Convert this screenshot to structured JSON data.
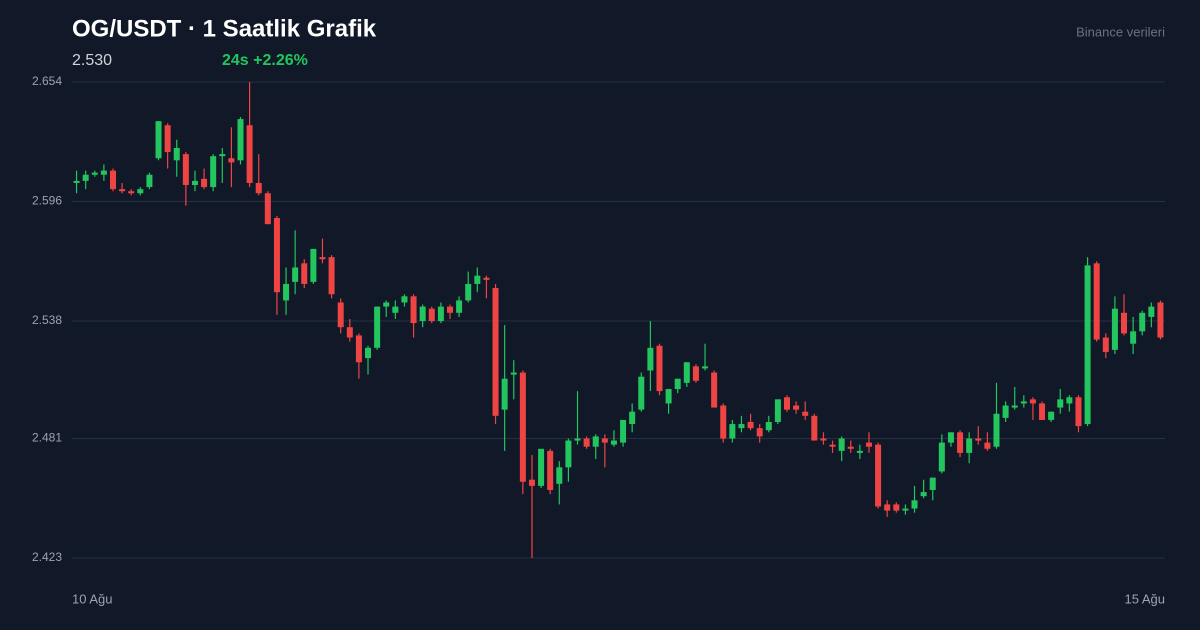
{
  "chart_data": {
    "type": "candlestick",
    "title": "OG/USDT · 1 Saatlik Grafik",
    "price": "2.530",
    "change": "24s +2.26%",
    "source": "Binance verileri",
    "x_labels": [
      "10 Ağu",
      "15 Ağu"
    ],
    "ylim": [
      2.423,
      2.654
    ],
    "yticks": [
      2.654,
      2.596,
      2.538,
      2.481,
      2.423
    ],
    "grid": true,
    "up_color": "#22c55e",
    "down_color": "#ef4444",
    "open": [
      2.605,
      2.606,
      2.609,
      2.609,
      2.611,
      2.602,
      2.601,
      2.6,
      2.603,
      2.617,
      2.633,
      2.616,
      2.619,
      2.604,
      2.607,
      2.603,
      2.618,
      2.617,
      2.616,
      2.633,
      2.605,
      2.6,
      2.588,
      2.548,
      2.557,
      2.566,
      2.557,
      2.569,
      2.569,
      2.547,
      2.535,
      2.531,
      2.52,
      2.525,
      2.545,
      2.542,
      2.547,
      2.55,
      2.538,
      2.544,
      2.538,
      2.545,
      2.542,
      2.548,
      2.556,
      2.559,
      2.554,
      2.495,
      2.512,
      2.513,
      2.461,
      2.458,
      2.475,
      2.459,
      2.467,
      2.48,
      2.481,
      2.477,
      2.481,
      2.478,
      2.479,
      2.488,
      2.495,
      2.514,
      2.526,
      2.498,
      2.505,
      2.508,
      2.516,
      2.515,
      2.513,
      2.497,
      2.481,
      2.486,
      2.489,
      2.486,
      2.485,
      2.489,
      2.501,
      2.497,
      2.494,
      2.492,
      2.481,
      2.478,
      2.475,
      2.477,
      2.474,
      2.479,
      2.478,
      2.449,
      2.449,
      2.446,
      2.447,
      2.453,
      2.456,
      2.465,
      2.479,
      2.484,
      2.474,
      2.481,
      2.479,
      2.477,
      2.491,
      2.496,
      2.498,
      2.5,
      2.498,
      2.49,
      2.496,
      2.498,
      2.501,
      2.488,
      2.566,
      2.53,
      2.524,
      2.542,
      2.527,
      2.533,
      2.54,
      2.547
    ],
    "high": [
      2.611,
      2.611,
      2.611,
      2.614,
      2.612,
      2.605,
      2.602,
      2.603,
      2.61,
      2.635,
      2.634,
      2.626,
      2.62,
      2.611,
      2.612,
      2.619,
      2.622,
      2.632,
      2.637,
      2.654,
      2.619,
      2.601,
      2.589,
      2.564,
      2.582,
      2.568,
      2.573,
      2.578,
      2.57,
      2.549,
      2.539,
      2.532,
      2.526,
      2.545,
      2.548,
      2.548,
      2.551,
      2.551,
      2.546,
      2.545,
      2.547,
      2.546,
      2.55,
      2.562,
      2.564,
      2.56,
      2.556,
      2.536,
      2.519,
      2.514,
      2.473,
      2.474,
      2.476,
      2.47,
      2.481,
      2.504,
      2.482,
      2.483,
      2.483,
      2.485,
      2.49,
      2.498,
      2.513,
      2.538,
      2.527,
      2.505,
      2.51,
      2.518,
      2.517,
      2.527,
      2.514,
      2.498,
      2.49,
      2.492,
      2.493,
      2.488,
      2.492,
      2.5,
      2.502,
      2.499,
      2.499,
      2.493,
      2.484,
      2.48,
      2.482,
      2.48,
      2.478,
      2.484,
      2.479,
      2.451,
      2.45,
      2.449,
      2.458,
      2.461,
      2.462,
      2.483,
      2.484,
      2.485,
      2.484,
      2.487,
      2.484,
      2.508,
      2.499,
      2.506,
      2.502,
      2.501,
      2.499,
      2.494,
      2.505,
      2.502,
      2.502,
      2.569,
      2.567,
      2.532,
      2.55,
      2.551,
      2.54,
      2.543,
      2.547,
      2.548
    ],
    "low": [
      2.6,
      2.602,
      2.608,
      2.606,
      2.601,
      2.6,
      2.599,
      2.599,
      2.602,
      2.616,
      2.612,
      2.608,
      2.594,
      2.601,
      2.602,
      2.601,
      2.605,
      2.603,
      2.614,
      2.603,
      2.599,
      2.585,
      2.541,
      2.541,
      2.551,
      2.554,
      2.556,
      2.566,
      2.549,
      2.532,
      2.528,
      2.51,
      2.512,
      2.524,
      2.54,
      2.539,
      2.545,
      2.53,
      2.535,
      2.537,
      2.537,
      2.539,
      2.54,
      2.547,
      2.552,
      2.549,
      2.488,
      2.475,
      2.5,
      2.454,
      2.423,
      2.457,
      2.454,
      2.449,
      2.46,
      2.478,
      2.476,
      2.471,
      2.467,
      2.477,
      2.477,
      2.484,
      2.494,
      2.504,
      2.502,
      2.493,
      2.503,
      2.506,
      2.508,
      2.514,
      2.496,
      2.479,
      2.479,
      2.484,
      2.485,
      2.479,
      2.484,
      2.488,
      2.494,
      2.493,
      2.49,
      2.48,
      2.478,
      2.474,
      2.47,
      2.474,
      2.471,
      2.474,
      2.447,
      2.443,
      2.445,
      2.444,
      2.445,
      2.452,
      2.451,
      2.464,
      2.477,
      2.472,
      2.469,
      2.478,
      2.475,
      2.476,
      2.489,
      2.495,
      2.496,
      2.49,
      2.49,
      2.489,
      2.493,
      2.494,
      2.484,
      2.487,
      2.528,
      2.52,
      2.522,
      2.531,
      2.522,
      2.531,
      2.535,
      2.529
    ],
    "close": [
      2.606,
      2.609,
      2.61,
      2.611,
      2.602,
      2.601,
      2.6,
      2.602,
      2.609,
      2.635,
      2.62,
      2.622,
      2.604,
      2.606,
      2.603,
      2.618,
      2.619,
      2.615,
      2.636,
      2.605,
      2.6,
      2.585,
      2.552,
      2.556,
      2.564,
      2.556,
      2.573,
      2.568,
      2.551,
      2.535,
      2.53,
      2.518,
      2.525,
      2.545,
      2.547,
      2.545,
      2.55,
      2.537,
      2.545,
      2.538,
      2.545,
      2.542,
      2.548,
      2.556,
      2.56,
      2.558,
      2.492,
      2.51,
      2.513,
      2.46,
      2.458,
      2.476,
      2.456,
      2.467,
      2.48,
      2.481,
      2.477,
      2.482,
      2.479,
      2.48,
      2.49,
      2.494,
      2.511,
      2.525,
      2.504,
      2.505,
      2.51,
      2.518,
      2.509,
      2.516,
      2.496,
      2.481,
      2.488,
      2.488,
      2.486,
      2.482,
      2.489,
      2.5,
      2.495,
      2.495,
      2.492,
      2.48,
      2.48,
      2.477,
      2.481,
      2.476,
      2.475,
      2.477,
      2.448,
      2.446,
      2.446,
      2.447,
      2.451,
      2.455,
      2.462,
      2.479,
      2.484,
      2.474,
      2.481,
      2.48,
      2.476,
      2.493,
      2.497,
      2.497,
      2.499,
      2.498,
      2.49,
      2.494,
      2.5,
      2.501,
      2.487,
      2.565,
      2.529,
      2.523,
      2.544,
      2.532,
      2.533,
      2.542,
      2.545,
      2.53
    ]
  }
}
